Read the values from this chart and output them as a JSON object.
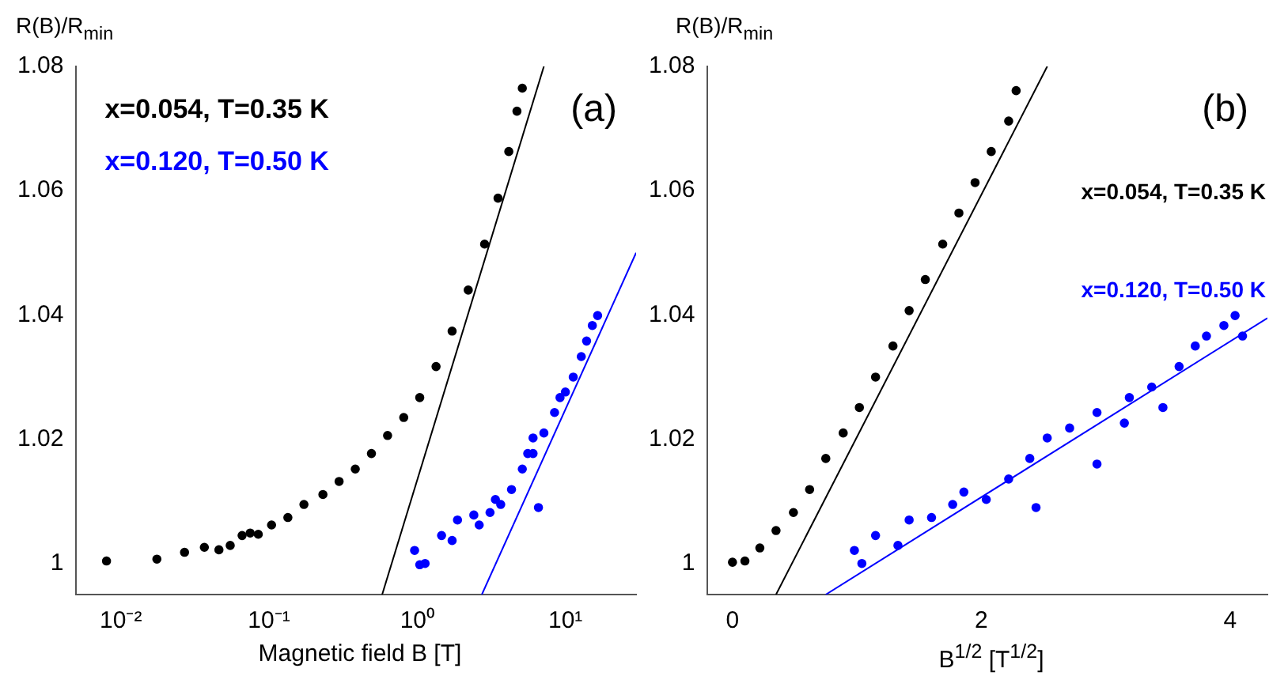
{
  "chart_data": [
    {
      "type": "scatter",
      "xlabel": "Magnetic field B [T]",
      "ylabel": "R(B)/R$_{min}$",
      "annotations": [
        "(a)"
      ],
      "log": "x",
      "marker": "circle",
      "xlim": [
        0.005,
        30
      ],
      "ylim": [
        0.995,
        1.08
      ],
      "xticks": [
        {
          "value": 0.01,
          "label": "10⁻²"
        },
        {
          "value": 0.1,
          "label": "10⁻¹"
        },
        {
          "value": 1,
          "label": "10⁰"
        },
        {
          "value": 10,
          "label": "10¹"
        }
      ],
      "yticks": [
        1,
        1.02,
        1.04,
        1.06,
        1.08
      ],
      "series": [
        {
          "name": "x=0.054, T=0.35 K",
          "color": "#000000",
          "x": [
            0.008,
            0.0175,
            0.0269,
            0.0366,
            0.0459,
            0.0547,
            0.0658,
            0.0746,
            0.0846,
            0.104,
            0.134,
            0.172,
            0.231,
            0.297,
            0.382,
            0.491,
            0.631,
            0.811,
            1.04,
            1.34,
            1.72,
            2.21,
            2.85,
            3.51,
            4.15,
            4.71,
            5.12
          ],
          "values": [
            1.0004,
            1.0007,
            1.0018,
            1.0026,
            1.0022,
            1.0029,
            1.0045,
            1.0049,
            1.0047,
            1.0062,
            1.0074,
            1.0095,
            1.0111,
            1.0132,
            1.0152,
            1.0177,
            1.0206,
            1.0235,
            1.0267,
            1.0317,
            1.0374,
            1.044,
            1.0514,
            1.0588,
            1.0663,
            1.0728,
            1.0765
          ]
        },
        {
          "name": "x=0.120, T=0.50 K",
          "color": "#0000ff",
          "x": [
            0.96,
            1.04,
            1.13,
            1.46,
            1.72,
            1.87,
            2.41,
            2.62,
            3.1,
            3.37,
            3.66,
            4.33,
            5.12,
            5.57,
            6.05,
            6.05,
            6.58,
            7.16,
            8.45,
            9.2,
            10,
            11.3,
            12.8,
            13.9,
            15.2,
            16.5
          ],
          "values": [
            1.0021,
            0.9998,
            1.0,
            1.0045,
            1.0037,
            1.007,
            1.0078,
            1.0062,
            1.0082,
            1.0103,
            1.0095,
            1.0119,
            1.0152,
            1.0177,
            1.0202,
            1.0177,
            1.009,
            1.021,
            1.0243,
            1.0267,
            1.0276,
            1.03,
            1.0333,
            1.0358,
            1.0383,
            1.0399
          ]
        },
        {
          "type": "line",
          "marker": "none",
          "color": "#000000",
          "x": [
            0.58,
            7.16
          ],
          "values": [
            0.995,
            1.08
          ]
        },
        {
          "type": "line",
          "marker": "none",
          "color": "#0000ff",
          "x": [
            2.73,
            30
          ],
          "values": [
            0.995,
            1.05
          ]
        }
      ]
    },
    {
      "type": "scatter",
      "xlabel": "B$^{1/2}$ [T$^{1/2}$]",
      "ylabel": "R(B)/R$_{min}$",
      "annotations": [
        "(b)"
      ],
      "marker": "circle",
      "xlim": [
        -0.2,
        4.3
      ],
      "ylim": [
        0.995,
        1.08
      ],
      "xticks": [
        0,
        2,
        4
      ],
      "yticks": [
        1,
        1.02,
        1.04,
        1.06,
        1.08
      ],
      "series": [
        {
          "name": "x=0.054, T=0.35 K",
          "color": "#000000",
          "x": [
            0,
            0.1,
            0.22,
            0.35,
            0.49,
            0.62,
            0.75,
            0.89,
            1.02,
            1.15,
            1.29,
            1.42,
            1.55,
            1.69,
            1.82,
            1.95,
            2.08,
            2.22,
            2.28
          ],
          "values": [
            1.0002,
            1.0004,
            1.0025,
            1.0053,
            1.0082,
            1.0119,
            1.0169,
            1.021,
            1.0251,
            1.03,
            1.035,
            1.0407,
            1.0457,
            1.0514,
            1.0564,
            1.0613,
            1.0663,
            1.0712,
            1.0761
          ]
        },
        {
          "name": "x=0.120, T=0.50 K",
          "color": "#0000ff",
          "x": [
            0.98,
            1.04,
            1.15,
            1.33,
            1.42,
            1.6,
            1.77,
            1.86,
            2.04,
            2.22,
            2.39,
            2.44,
            2.53,
            2.71,
            2.93,
            2.93,
            3.15,
            3.19,
            3.37,
            3.46,
            3.59,
            3.72,
            3.81,
            3.95,
            4.04,
            4.1
          ],
          "values": [
            1.0021,
            1.0,
            1.0045,
            1.0029,
            1.007,
            1.0074,
            1.0095,
            1.0115,
            1.0103,
            1.0136,
            1.0169,
            1.009,
            1.0202,
            1.0218,
            1.016,
            1.0243,
            1.0226,
            1.0267,
            1.0284,
            1.0251,
            1.0317,
            1.035,
            1.0366,
            1.0383,
            1.0399,
            1.0366
          ]
        },
        {
          "type": "line",
          "marker": "none",
          "color": "#000000",
          "x": [
            0.35,
            2.53
          ],
          "values": [
            0.995,
            1.08
          ]
        },
        {
          "type": "line",
          "marker": "none",
          "color": "#0000ff",
          "x": [
            0.75,
            4.3
          ],
          "values": [
            0.995,
            1.0395
          ]
        }
      ]
    }
  ]
}
